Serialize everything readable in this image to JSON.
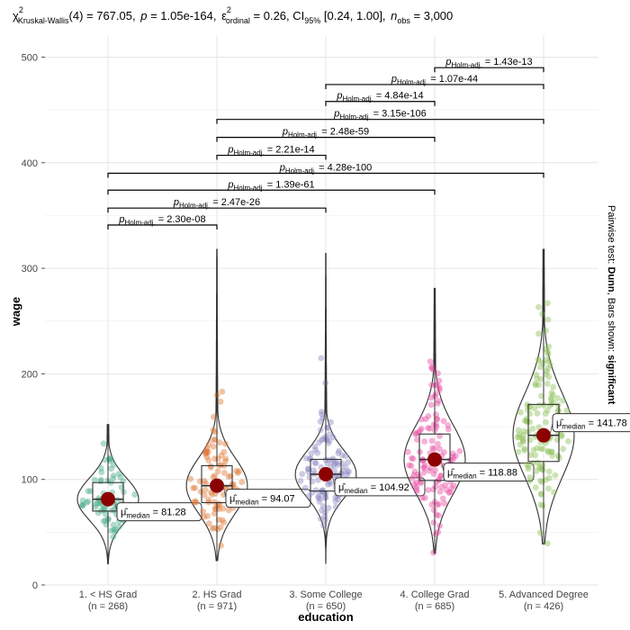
{
  "chart_data": {
    "type": "violin-box-scatter",
    "title": {
      "prefix": "χ",
      "sup": "2",
      "sub": "Kruskal-Wallis",
      "df": "(4) = 767.05,",
      "p_label": "p",
      "p_value": " = 1.05e-164,",
      "eps_label": "ε",
      "eps_sup": "2",
      "eps_sub": "ordinal",
      "eps_value": " = 0.26, CI",
      "ci_sub": "95%",
      "ci_value": " [0.24, 1.00],",
      "n_label": "n",
      "n_sub": "obs",
      "n_value": " = 3,000"
    },
    "xlabel": "education",
    "ylabel": "wage",
    "ylim": [
      0,
      520
    ],
    "yticks": [
      0,
      100,
      200,
      300,
      400,
      500
    ],
    "caption": {
      "prefix": "Pairwise test: ",
      "test": "Dunn",
      "middle": ", Bars shown: ",
      "shown": "significant"
    },
    "groups": [
      {
        "label": "1. < HS Grad",
        "n": "(n = 268)",
        "color": "#4daf8a",
        "median": 81.28,
        "q1": 70,
        "q3": 97,
        "min": 20,
        "max": 152,
        "median_label": "= 81.28"
      },
      {
        "label": "2. HS Grad",
        "n": "(n = 971)",
        "color": "#e07b39",
        "median": 94.07,
        "q1": 78,
        "q3": 113,
        "min": 23,
        "max": 318,
        "median_label": "= 94.07"
      },
      {
        "label": "3. Some College",
        "n": "(n = 650)",
        "color": "#8f8cc4",
        "median": 104.92,
        "q1": 89,
        "q3": 119,
        "min": 20,
        "max": 314,
        "median_label": "= 104.92"
      },
      {
        "label": "4. College Grad",
        "n": "(n = 685)",
        "color": "#e94fa3",
        "median": 118.88,
        "q1": 99,
        "q3": 143,
        "min": 30,
        "max": 281,
        "median_label": "= 118.88"
      },
      {
        "label": "5. Advanced Degree",
        "n": "(n = 426)",
        "color": "#8fc05a",
        "median": 141.78,
        "q1": 117,
        "q3": 171,
        "min": 39,
        "max": 318,
        "median_label": "= 141.78"
      }
    ],
    "pairwise": [
      {
        "from": 0,
        "to": 1,
        "y": 341,
        "label": "= 2.30e-08"
      },
      {
        "from": 0,
        "to": 2,
        "y": 357,
        "label": "= 2.47e-26"
      },
      {
        "from": 0,
        "to": 3,
        "y": 374,
        "label": "= 1.39e-61"
      },
      {
        "from": 0,
        "to": 4,
        "y": 390,
        "label": "= 4.28e-100"
      },
      {
        "from": 1,
        "to": 2,
        "y": 407,
        "label": "= 2.21e-14"
      },
      {
        "from": 1,
        "to": 3,
        "y": 424,
        "label": "= 2.48e-59"
      },
      {
        "from": 1,
        "to": 4,
        "y": 441,
        "label": "= 3.15e-106"
      },
      {
        "from": 2,
        "to": 3,
        "y": 458,
        "label": "= 4.84e-14"
      },
      {
        "from": 2,
        "to": 4,
        "y": 474,
        "label": "= 1.07e-44"
      },
      {
        "from": 3,
        "to": 4,
        "y": 490,
        "label": "= 1.43e-13"
      }
    ],
    "p_holm": {
      "p": "p",
      "sub": "Holm-adj."
    },
    "mu_median": {
      "mu": "μ̂",
      "sub": "median"
    }
  }
}
